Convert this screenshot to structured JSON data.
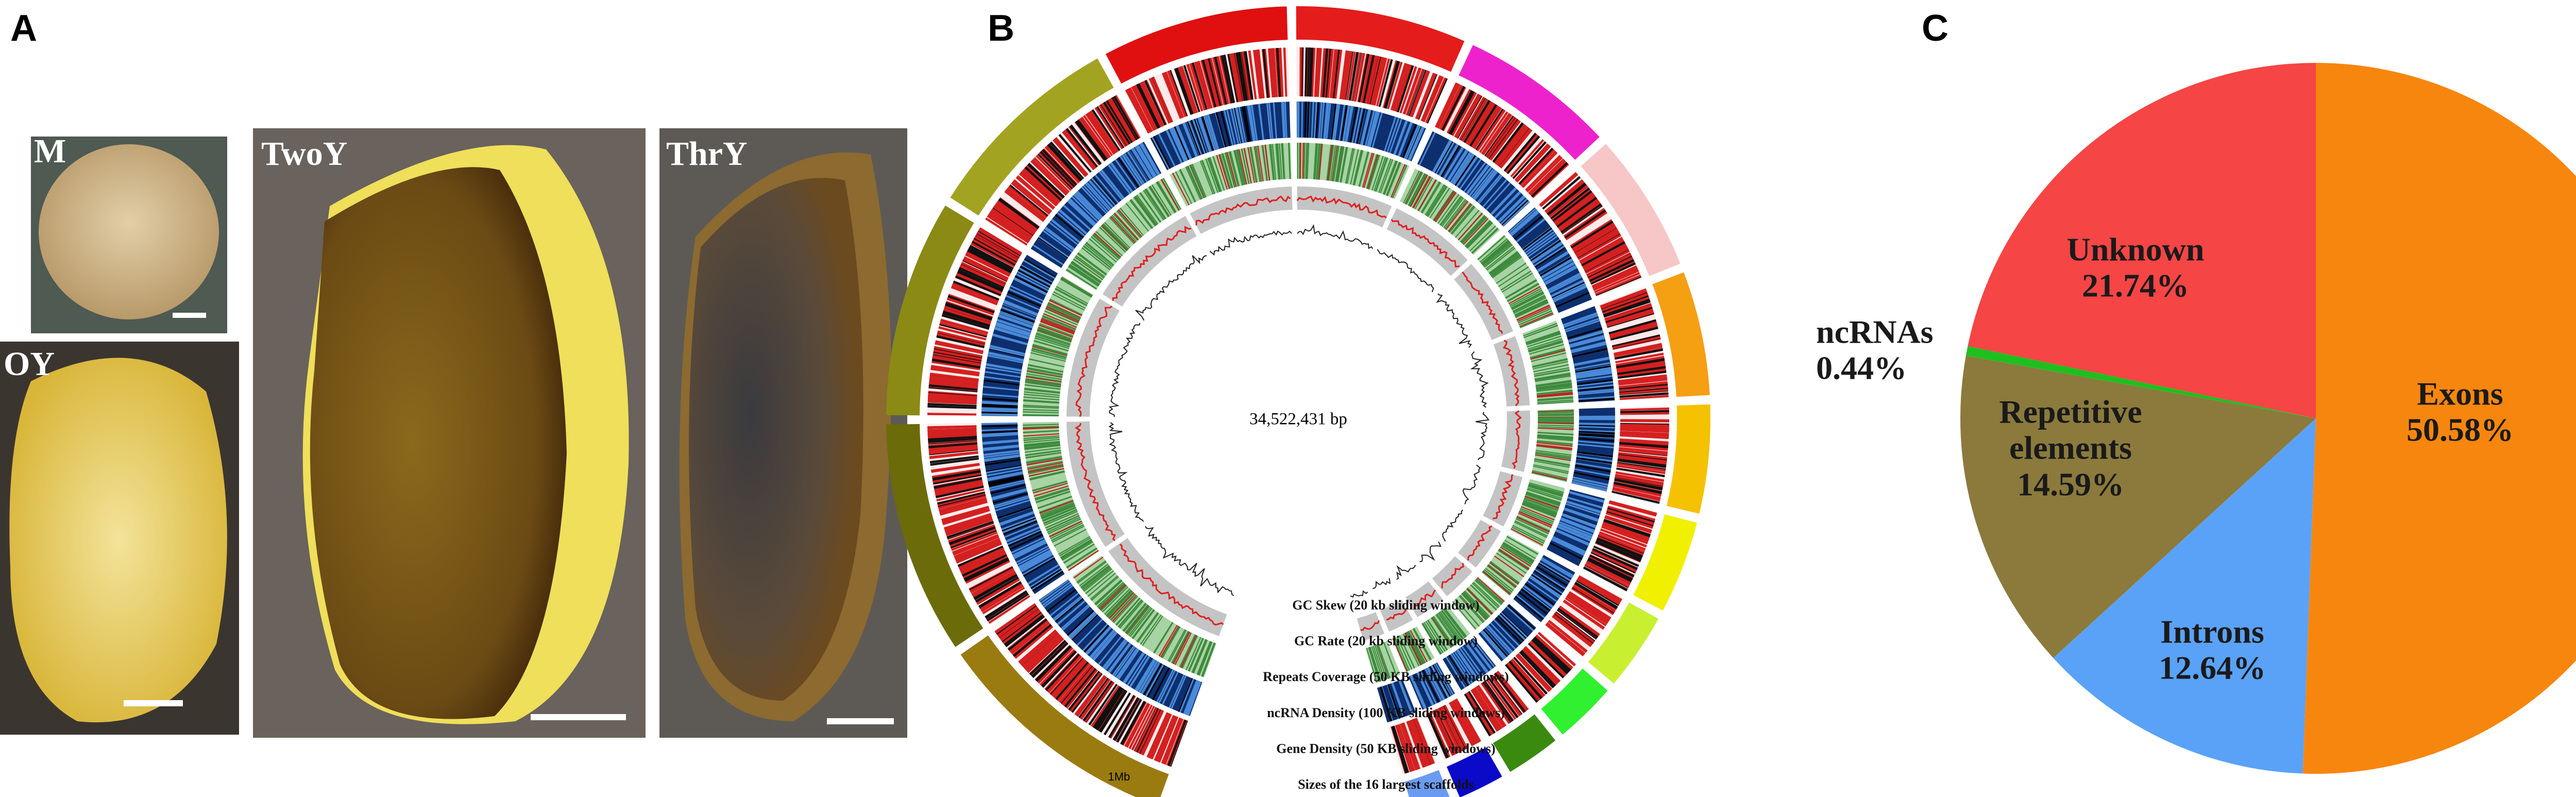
{
  "panels": {
    "a": {
      "label": "A",
      "photos": [
        {
          "label": "M"
        },
        {
          "label": "OY"
        },
        {
          "label": "TwoY"
        },
        {
          "label": "ThrY"
        }
      ]
    },
    "b": {
      "label": "B",
      "center_label": "34,522,431 bp",
      "scale_label": "1Mb",
      "tracks": [
        "GC Skew (20 kb sliding window)",
        "GC Rate (20 kb sliding window)",
        "Repeats Coverage (50 KB sliding windows)",
        "ncRNA Density (100 KB sliding windows)",
        "Gene Density (50 KB sliding windows)",
        "Sizes of the 16 largest scaffolds"
      ]
    },
    "c": {
      "label": "C"
    }
  },
  "chart_data": {
    "type": "pie",
    "categories": [
      "Exons",
      "Introns",
      "Repetitive elements",
      "ncRNAs",
      "Unknown"
    ],
    "values": [
      50.58,
      12.64,
      14.59,
      0.44,
      21.74
    ],
    "value_labels": [
      "50.58%",
      "12.64%",
      "14.59%",
      "0.44%",
      "21.74%"
    ],
    "colors": [
      "#f7860f",
      "#5aa2f7",
      "#8b7a3c",
      "#1fbf1f",
      "#f54545"
    ]
  }
}
